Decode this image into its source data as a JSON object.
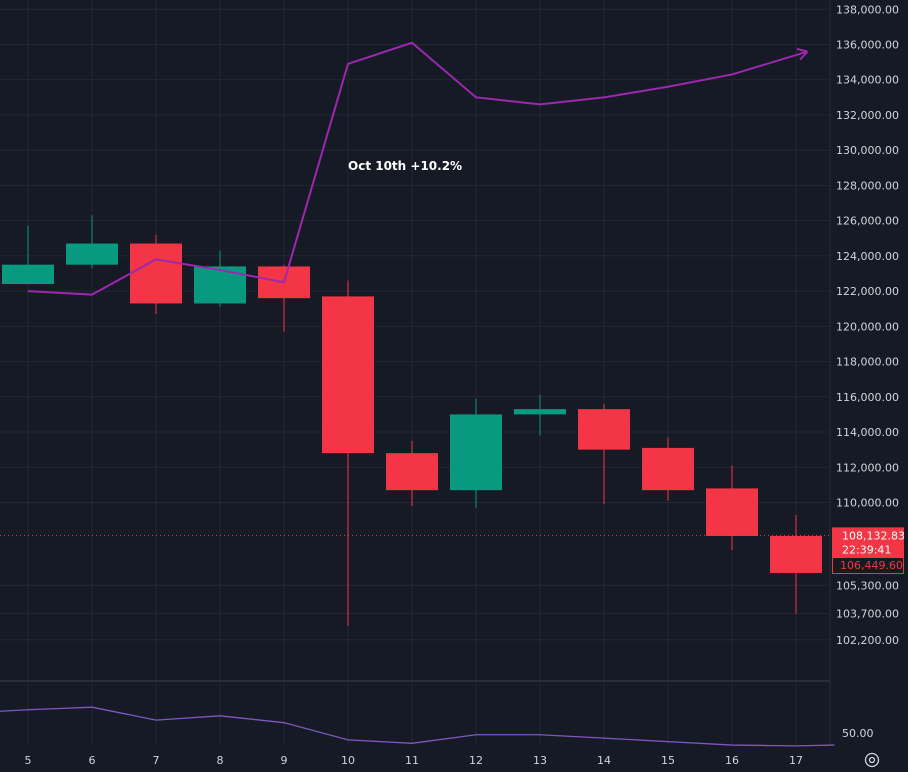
{
  "colors": {
    "background": "#161a25",
    "grid": "#232733",
    "text": "#d1d4dc",
    "up": "#089981",
    "down": "#f23645",
    "projection": "#9c27b0",
    "oscillator": "#7e57c2",
    "price_line": "#f23645"
  },
  "chart_data": {
    "type": "candlestick",
    "x_tick_labels": [
      "5",
      "6",
      "7",
      "8",
      "9",
      "10",
      "11",
      "12",
      "13",
      "14",
      "15",
      "16",
      "17"
    ],
    "y_tick_labels": [
      "138,000.00",
      "136,000.00",
      "134,000.00",
      "132,000.00",
      "130,000.00",
      "128,000.00",
      "126,000.00",
      "124,000.00",
      "122,000.00",
      "120,000.00",
      "118,000.00",
      "116,000.00",
      "114,000.00",
      "112,000.00",
      "110,000.00",
      "105,300.00",
      "103,700.00",
      "102,200.00"
    ],
    "candles": [
      {
        "day": "5",
        "open": 122400,
        "high": 125700,
        "low": 122400,
        "close": 123500
      },
      {
        "day": "6",
        "open": 123500,
        "high": 126300,
        "low": 123300,
        "close": 124700
      },
      {
        "day": "7",
        "open": 124700,
        "high": 125200,
        "low": 120700,
        "close": 121300
      },
      {
        "day": "8",
        "open": 121300,
        "high": 124300,
        "low": 121100,
        "close": 123400
      },
      {
        "day": "9",
        "open": 123400,
        "high": 123500,
        "low": 119700,
        "close": 121600
      },
      {
        "day": "10",
        "open": 121700,
        "high": 122600,
        "low": 103000,
        "close": 112800
      },
      {
        "day": "11",
        "open": 112800,
        "high": 113500,
        "low": 109800,
        "close": 110700
      },
      {
        "day": "12",
        "open": 110700,
        "high": 115900,
        "low": 109700,
        "close": 115000
      },
      {
        "day": "13",
        "open": 115000,
        "high": 116100,
        "low": 113800,
        "close": 115300
      },
      {
        "day": "14",
        "open": 115300,
        "high": 115600,
        "low": 109900,
        "close": 113000
      },
      {
        "day": "15",
        "open": 113100,
        "high": 113700,
        "low": 110100,
        "close": 110700
      },
      {
        "day": "16",
        "open": 110800,
        "high": 112100,
        "low": 107300,
        "close": 108100
      },
      {
        "day": "17",
        "open": 108100,
        "high": 109300,
        "low": 103700,
        "close": 106000
      }
    ],
    "projection_line": [
      {
        "day": "5",
        "value": 122000
      },
      {
        "day": "6",
        "value": 121800
      },
      {
        "day": "7",
        "value": 123800
      },
      {
        "day": "8",
        "value": 123200
      },
      {
        "day": "9",
        "value": 122500
      },
      {
        "day": "10",
        "value": 134900
      },
      {
        "day": "11",
        "value": 136100
      },
      {
        "day": "12",
        "value": 133000
      },
      {
        "day": "13",
        "value": 132600
      },
      {
        "day": "14",
        "value": 133000
      },
      {
        "day": "15",
        "value": 133600
      },
      {
        "day": "16",
        "value": 134300
      },
      {
        "day": "17",
        "value": 135400
      }
    ],
    "annotation": "Oct 10th +10.2%",
    "current_price": {
      "value": 108132.83,
      "label": "108,132.83",
      "countdown": "22:39:41"
    },
    "secondary_price": {
      "value": 106449.6,
      "label": "106,449.60"
    },
    "oscillator": {
      "tick_label": "50.00",
      "values": [
        {
          "day": "4.5",
          "value": 52.5
        },
        {
          "day": "5",
          "value": 52.7
        },
        {
          "day": "6",
          "value": 53.0
        },
        {
          "day": "7",
          "value": 51.5
        },
        {
          "day": "8",
          "value": 52.0
        },
        {
          "day": "9",
          "value": 51.2
        },
        {
          "day": "10",
          "value": 49.2
        },
        {
          "day": "11",
          "value": 48.8
        },
        {
          "day": "12",
          "value": 49.8
        },
        {
          "day": "13",
          "value": 49.8
        },
        {
          "day": "14",
          "value": 49.4
        },
        {
          "day": "15",
          "value": 49.0
        },
        {
          "day": "16",
          "value": 48.6
        },
        {
          "day": "17",
          "value": 48.5
        },
        {
          "day": "17.6",
          "value": 48.6
        }
      ]
    }
  },
  "settings_icon": "settings-gear-icon"
}
